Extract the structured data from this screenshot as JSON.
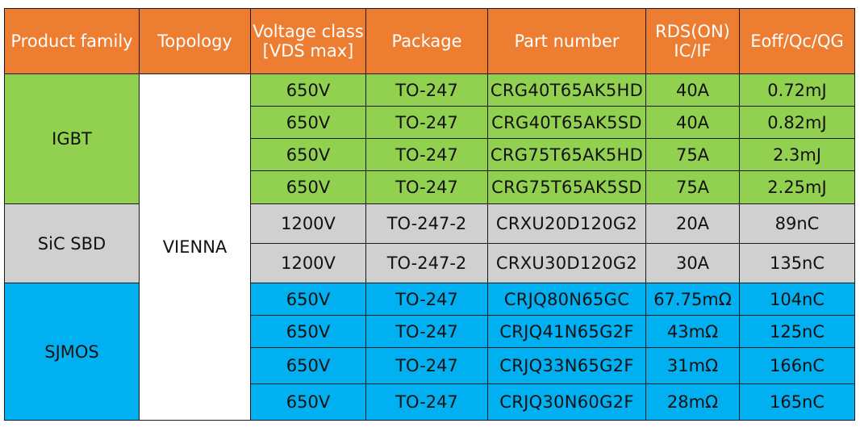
{
  "headers": [
    "Product family",
    "Topology",
    "Voltage class [VDS max]",
    "Package",
    "Part number",
    "RDS(ON) IC/IF",
    "Eoff/Qc/QG"
  ],
  "header_lines": {
    "voltage": [
      "Voltage class",
      "[VDS max]"
    ],
    "rds": [
      "RDS(ON)",
      "IC/IF"
    ]
  },
  "families": {
    "igbt": "IGBT",
    "sic": "SiC SBD",
    "sjmos": "SJMOS"
  },
  "topology": "VIENNA",
  "rows": [
    {
      "voltage": "650V",
      "package": "TO-247",
      "part": "CRG40T65AK5HD",
      "rating": "40A",
      "energy": "0.72mJ"
    },
    {
      "voltage": "650V",
      "package": "TO-247",
      "part": "CRG40T65AK5SD",
      "rating": "40A",
      "energy": "0.82mJ"
    },
    {
      "voltage": "650V",
      "package": "TO-247",
      "part": "CRG75T65AK5HD",
      "rating": "75A",
      "energy": "2.3mJ"
    },
    {
      "voltage": "650V",
      "package": "TO-247",
      "part": "CRG75T65AK5SD",
      "rating": "75A",
      "energy": "2.25mJ"
    },
    {
      "voltage": "1200V",
      "package": "TO-247-2",
      "part": "CRXU20D120G2",
      "rating": "20A",
      "energy": "89nC"
    },
    {
      "voltage": "1200V",
      "package": "TO-247-2",
      "part": "CRXU30D120G2",
      "rating": "30A",
      "energy": "135nC"
    },
    {
      "voltage": "650V",
      "package": "TO-247",
      "part": "CRJQ80N65GC",
      "rating": "67.75mΩ",
      "energy": "104nC"
    },
    {
      "voltage": "650V",
      "package": "TO-247",
      "part": "CRJQ41N65G2F",
      "rating": "43mΩ",
      "energy": "125nC"
    },
    {
      "voltage": "650V",
      "package": "TO-247",
      "part": "CRJQ33N65G2F",
      "rating": "31mΩ",
      "energy": "166nC"
    },
    {
      "voltage": "650V",
      "package": "TO-247",
      "part": "CRJQ30N60G2F",
      "rating": "28mΩ",
      "energy": "165nC"
    }
  ],
  "colors": {
    "header": "#ed7d31",
    "igbt": "#92d050",
    "sic": "#d0d0d0",
    "sjmos": "#00b0f0",
    "border": "#1a1a1a"
  }
}
